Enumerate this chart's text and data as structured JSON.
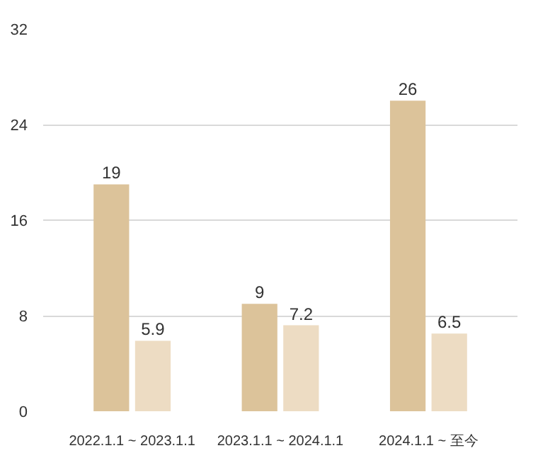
{
  "chart_data": {
    "type": "bar",
    "categories": [
      "2022.1.1 ~ 2023.1.1",
      "2023.1.1 ~ 2024.1.1",
      "2024.1.1 ~ 至今"
    ],
    "series": [
      {
        "color": "#dcc39a",
        "values": [
          19,
          9,
          26
        ]
      },
      {
        "color": "#eddcc3",
        "values": [
          5.9,
          7.2,
          6.5
        ]
      }
    ],
    "ylim": [
      0,
      32
    ],
    "yticks": [
      0,
      8,
      16,
      24,
      32
    ],
    "grid": "y",
    "data_labels": true
  }
}
